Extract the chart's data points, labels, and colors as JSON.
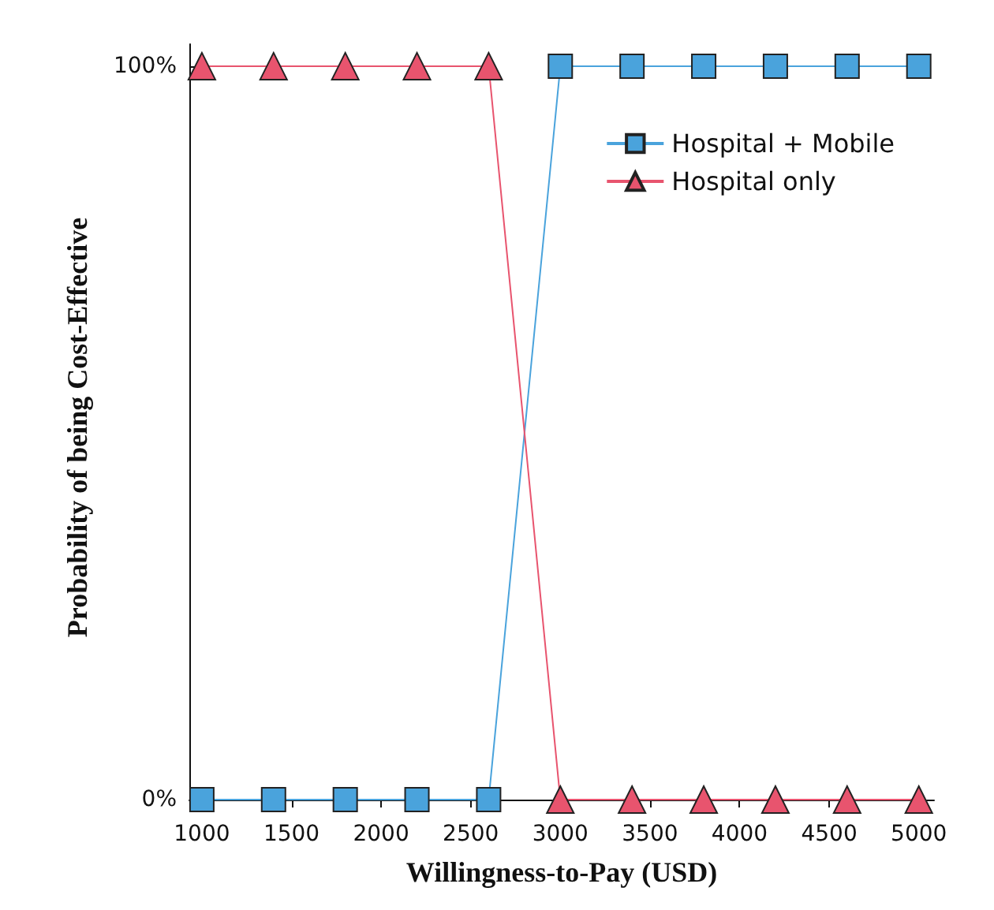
{
  "chart_data": {
    "type": "line",
    "xlabel": "Willingness-to-Pay (USD)",
    "ylabel": "Probability of being Cost-Effective",
    "x": [
      1000,
      1400,
      1800,
      2200,
      2600,
      3000,
      3400,
      3800,
      4200,
      4600,
      5000
    ],
    "series": [
      {
        "name": "Hospital + Mobile",
        "color": "#4aa3dc",
        "marker": "square",
        "values": [
          0,
          0,
          0,
          0,
          0,
          100,
          100,
          100,
          100,
          100,
          100
        ]
      },
      {
        "name": "Hospital only",
        "color": "#e8546e",
        "marker": "triangle",
        "values": [
          100,
          100,
          100,
          100,
          100,
          0,
          0,
          0,
          0,
          0,
          0
        ]
      }
    ],
    "xlim": [
      930,
      5085
    ],
    "xticks": [
      1000,
      1500,
      2000,
      2500,
      3000,
      3500,
      4000,
      4500,
      5000
    ],
    "ylim": [
      -1.5,
      103
    ],
    "yticks": [
      {
        "value": 0,
        "label": "0%"
      },
      {
        "value": 100,
        "label": "100%"
      }
    ],
    "grid": false,
    "legend": "top right",
    "line_style": "solid"
  }
}
